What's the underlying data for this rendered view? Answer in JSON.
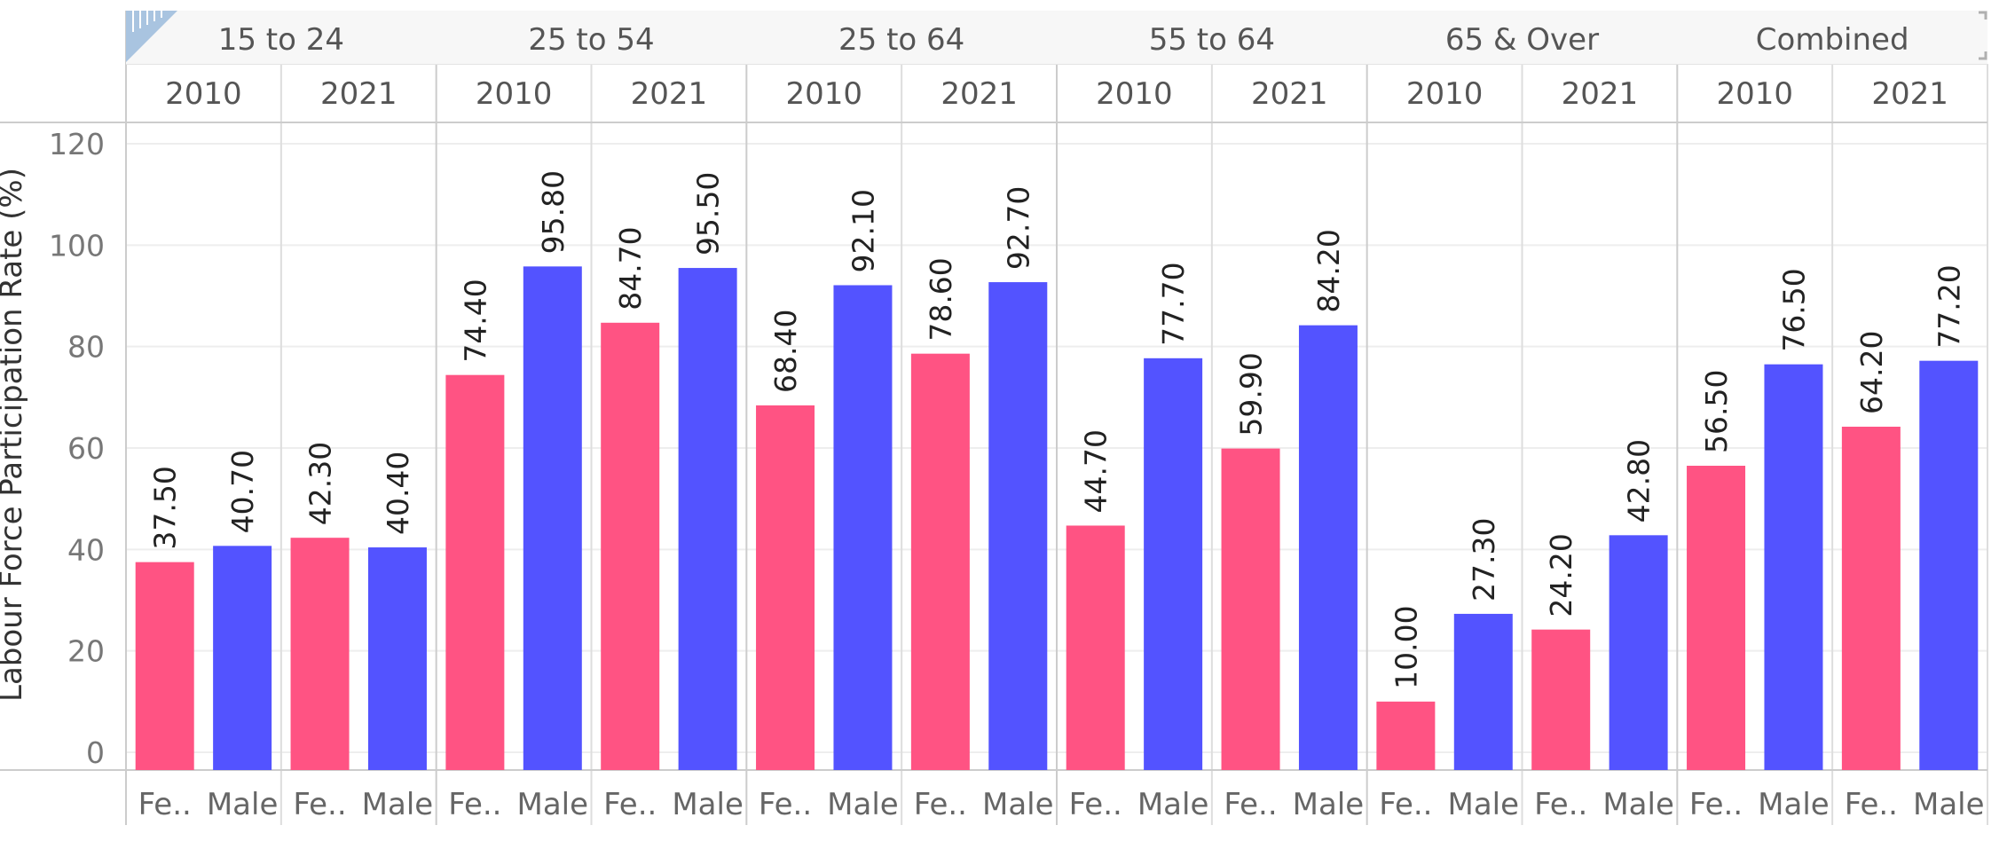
{
  "chart_data": {
    "type": "bar",
    "title": "",
    "ylabel": "Labour Force Participation Rate (%)",
    "ylim": [
      0,
      120
    ],
    "yticks": [
      0,
      20,
      40,
      60,
      80,
      100,
      120
    ],
    "grid": true,
    "groups": [
      "15 to 24",
      "25 to 54",
      "25 to 64",
      "55 to 64",
      "65 & Over",
      "Combined"
    ],
    "years": [
      "2010",
      "2021"
    ],
    "gender_labels": [
      "Fe..",
      "Male"
    ],
    "series": [
      {
        "name": "Female",
        "color": "#ff5383",
        "values": [
          37.5,
          42.3,
          74.4,
          84.7,
          68.4,
          78.6,
          44.7,
          59.9,
          10.0,
          24.2,
          56.5,
          64.2
        ],
        "labels": [
          "37.50",
          "42.30",
          "74.40",
          "84.70",
          "68.40",
          "78.60",
          "44.70",
          "59.90",
          "10.00",
          "24.20",
          "56.50",
          "64.20"
        ]
      },
      {
        "name": "Male",
        "color": "#5353ff",
        "values": [
          40.7,
          40.4,
          95.8,
          95.5,
          92.1,
          92.7,
          77.7,
          84.2,
          27.3,
          42.8,
          76.5,
          77.2
        ],
        "labels": [
          "40.70",
          "40.40",
          "95.80",
          "95.50",
          "92.10",
          "92.70",
          "77.70",
          "84.20",
          "27.30",
          "42.80",
          "76.50",
          "77.20"
        ]
      }
    ]
  }
}
